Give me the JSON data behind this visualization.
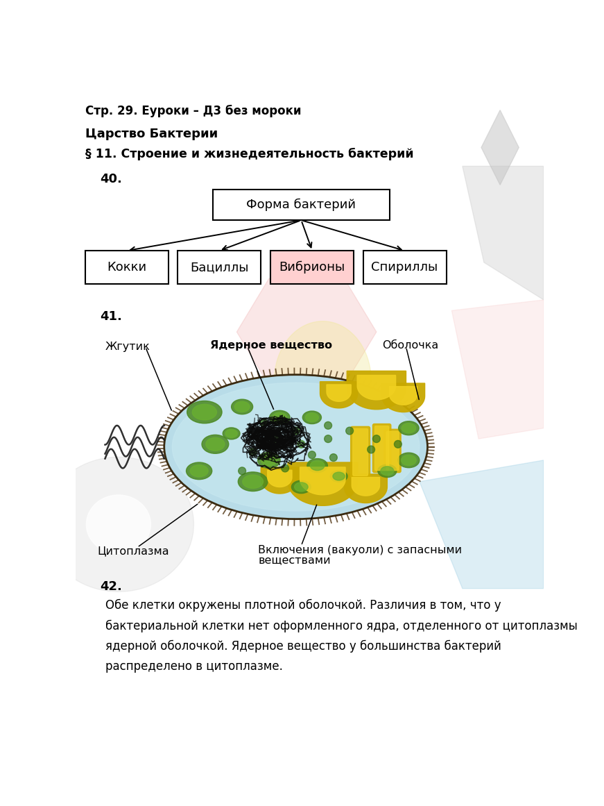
{
  "title_line": "Стр. 29. Еуроки – Д3 без мороки",
  "subtitle": "Царство Бактерии",
  "section": "§ 11. Строение и жизнедеятельность бактерий",
  "q40": "40.",
  "q41": "41.",
  "q42": "42.",
  "root_box_text": "Форма бактерий",
  "child_boxes": [
    {
      "label": "Кокки",
      "bg": "#ffffff"
    },
    {
      "label": "Бациллы",
      "bg": "#ffffff"
    },
    {
      "label": "Вибрионы",
      "bg": "#ffd0d0"
    },
    {
      "label": "Спириллы",
      "bg": "#ffffff"
    }
  ],
  "label_flagellum": "Жгутик",
  "label_nuclear": "Ядерное вещество",
  "label_membrane": "Оболочка",
  "label_cytoplasm": "Цитоплазма",
  "label_inclusions": "Включения (вакуоли) с запасными\nвеществами",
  "text_42_lines": [
    "Обе клетки окружены плотной оболочкой. Различия в том, что у",
    "бактериальной клетки нет оформленного ядра, отделенного от цитоплазмы",
    "ядерной оболочкой. Ядерное вещество у большинства бактерий",
    "распределено в цитоплазме."
  ],
  "bg_color": "#ffffff",
  "text_color": "#000000"
}
